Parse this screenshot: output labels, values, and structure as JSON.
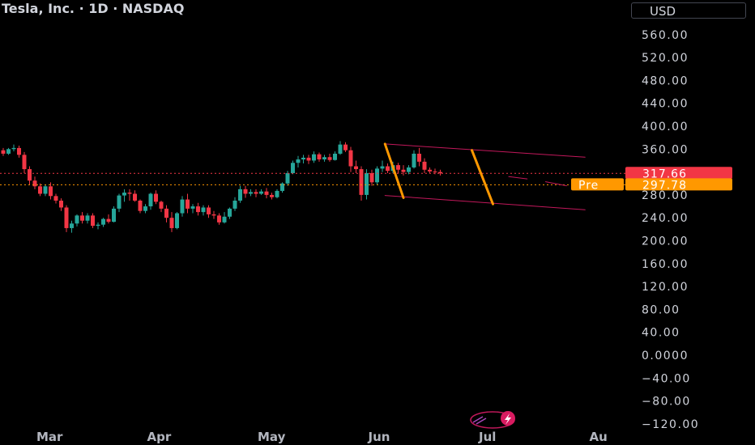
{
  "header": {
    "symbol_name": "Tesla, Inc.",
    "interval": "1D",
    "exchange": "NASDAQ",
    "separator": " · ",
    "currency": "USD"
  },
  "colors": {
    "up": "#26a69a",
    "down": "#f23645",
    "channel": "#c2185b",
    "arrow": "#ff9800",
    "pre_tag": "#ff9800",
    "last_tag": "#f23645"
  },
  "price_tags": {
    "last": {
      "value": 317.66,
      "text": "317.66"
    },
    "pre": {
      "label": "Pre",
      "value": 297.78,
      "text": "297.78"
    }
  },
  "watermark_icon": "lightning-logo-icon",
  "chart_data": {
    "type": "candlestick",
    "title": "Tesla, Inc. · 1D · NASDAQ",
    "y_ticks": [
      "560.00",
      "520.00",
      "480.00",
      "440.00",
      "400.00",
      "360.00",
      "320.00",
      "280.00",
      "240.00",
      "200.00",
      "160.00",
      "120.00",
      "80.00",
      "40.00",
      "0.0000",
      "−40.00",
      "−80.00",
      "−120.00"
    ],
    "y_tick_values": [
      560,
      520,
      480,
      440,
      400,
      360,
      320,
      280,
      240,
      200,
      160,
      120,
      80,
      40,
      0,
      -40,
      -80,
      -120
    ],
    "ylim": [
      -129,
      578
    ],
    "x_ticks": [
      {
        "label": "Mar",
        "bar": 0
      },
      {
        "label": "Apr",
        "bar": 21
      },
      {
        "label": "May",
        "bar": 42
      },
      {
        "label": "Jun",
        "bar": 63
      },
      {
        "label": "Jul",
        "bar": 84
      },
      {
        "label": "Au",
        "bar": 105
      }
    ],
    "candles": [
      [
        358,
        362,
        348,
        352
      ],
      [
        352,
        362,
        350,
        360
      ],
      [
        360,
        368,
        356,
        362
      ],
      [
        362,
        366,
        345,
        350
      ],
      [
        350,
        355,
        318,
        325
      ],
      [
        325,
        330,
        298,
        305
      ],
      [
        305,
        312,
        290,
        295
      ],
      [
        295,
        300,
        278,
        282
      ],
      [
        282,
        298,
        278,
        295
      ],
      [
        295,
        302,
        272,
        278
      ],
      [
        278,
        282,
        265,
        270
      ],
      [
        270,
        274,
        252,
        258
      ],
      [
        258,
        262,
        215,
        222
      ],
      [
        222,
        235,
        214,
        230
      ],
      [
        230,
        246,
        225,
        244
      ],
      [
        244,
        250,
        230,
        235
      ],
      [
        235,
        248,
        230,
        244
      ],
      [
        244,
        248,
        222,
        226
      ],
      [
        226,
        232,
        220,
        228
      ],
      [
        228,
        240,
        224,
        238
      ],
      [
        238,
        246,
        230,
        233
      ],
      [
        233,
        260,
        232,
        256
      ],
      [
        256,
        282,
        250,
        279
      ],
      [
        279,
        290,
        268,
        284
      ],
      [
        284,
        290,
        270,
        282
      ],
      [
        282,
        288,
        268,
        270
      ],
      [
        270,
        272,
        248,
        252
      ],
      [
        252,
        264,
        248,
        260
      ],
      [
        260,
        284,
        254,
        282
      ],
      [
        282,
        288,
        264,
        268
      ],
      [
        268,
        270,
        250,
        256
      ],
      [
        256,
        262,
        232,
        240
      ],
      [
        240,
        250,
        215,
        222
      ],
      [
        222,
        250,
        220,
        248
      ],
      [
        248,
        278,
        242,
        272
      ],
      [
        272,
        282,
        248,
        256
      ],
      [
        256,
        264,
        248,
        260
      ],
      [
        260,
        266,
        244,
        250
      ],
      [
        250,
        262,
        244,
        258
      ],
      [
        258,
        262,
        240,
        246
      ],
      [
        246,
        252,
        238,
        244
      ],
      [
        244,
        248,
        228,
        232
      ],
      [
        232,
        250,
        230,
        242
      ],
      [
        242,
        258,
        238,
        256
      ],
      [
        256,
        276,
        252,
        270
      ],
      [
        270,
        296,
        266,
        290
      ],
      [
        290,
        296,
        275,
        282
      ],
      [
        282,
        290,
        278,
        285
      ],
      [
        285,
        290,
        276,
        282
      ],
      [
        282,
        290,
        280,
        286
      ],
      [
        286,
        292,
        274,
        280
      ],
      [
        280,
        284,
        272,
        276
      ],
      [
        276,
        290,
        274,
        287
      ],
      [
        287,
        302,
        284,
        300
      ],
      [
        300,
        322,
        296,
        318
      ],
      [
        318,
        340,
        316,
        336
      ],
      [
        336,
        348,
        328,
        342
      ],
      [
        342,
        350,
        335,
        345
      ],
      [
        345,
        350,
        334,
        340
      ],
      [
        340,
        356,
        336,
        351
      ],
      [
        351,
        354,
        338,
        342
      ],
      [
        342,
        350,
        338,
        346
      ],
      [
        346,
        352,
        338,
        341
      ],
      [
        341,
        356,
        340,
        352
      ],
      [
        352,
        374,
        350,
        368
      ],
      [
        368,
        372,
        355,
        358
      ],
      [
        358,
        364,
        320,
        330
      ],
      [
        330,
        340,
        318,
        325
      ],
      [
        325,
        330,
        270,
        280
      ],
      [
        280,
        325,
        272,
        318
      ],
      [
        318,
        324,
        296,
        302
      ],
      [
        302,
        330,
        298,
        326
      ],
      [
        326,
        340,
        320,
        330
      ],
      [
        330,
        335,
        318,
        322
      ],
      [
        322,
        338,
        318,
        332
      ],
      [
        332,
        336,
        318,
        324
      ],
      [
        324,
        332,
        314,
        320
      ],
      [
        320,
        332,
        316,
        328
      ],
      [
        328,
        358,
        326,
        352
      ],
      [
        352,
        362,
        330,
        338
      ],
      [
        338,
        344,
        318,
        324
      ],
      [
        324,
        328,
        318,
        321
      ],
      [
        321,
        326,
        316,
        320
      ],
      [
        320,
        324,
        314,
        317.66
      ]
    ]
  }
}
